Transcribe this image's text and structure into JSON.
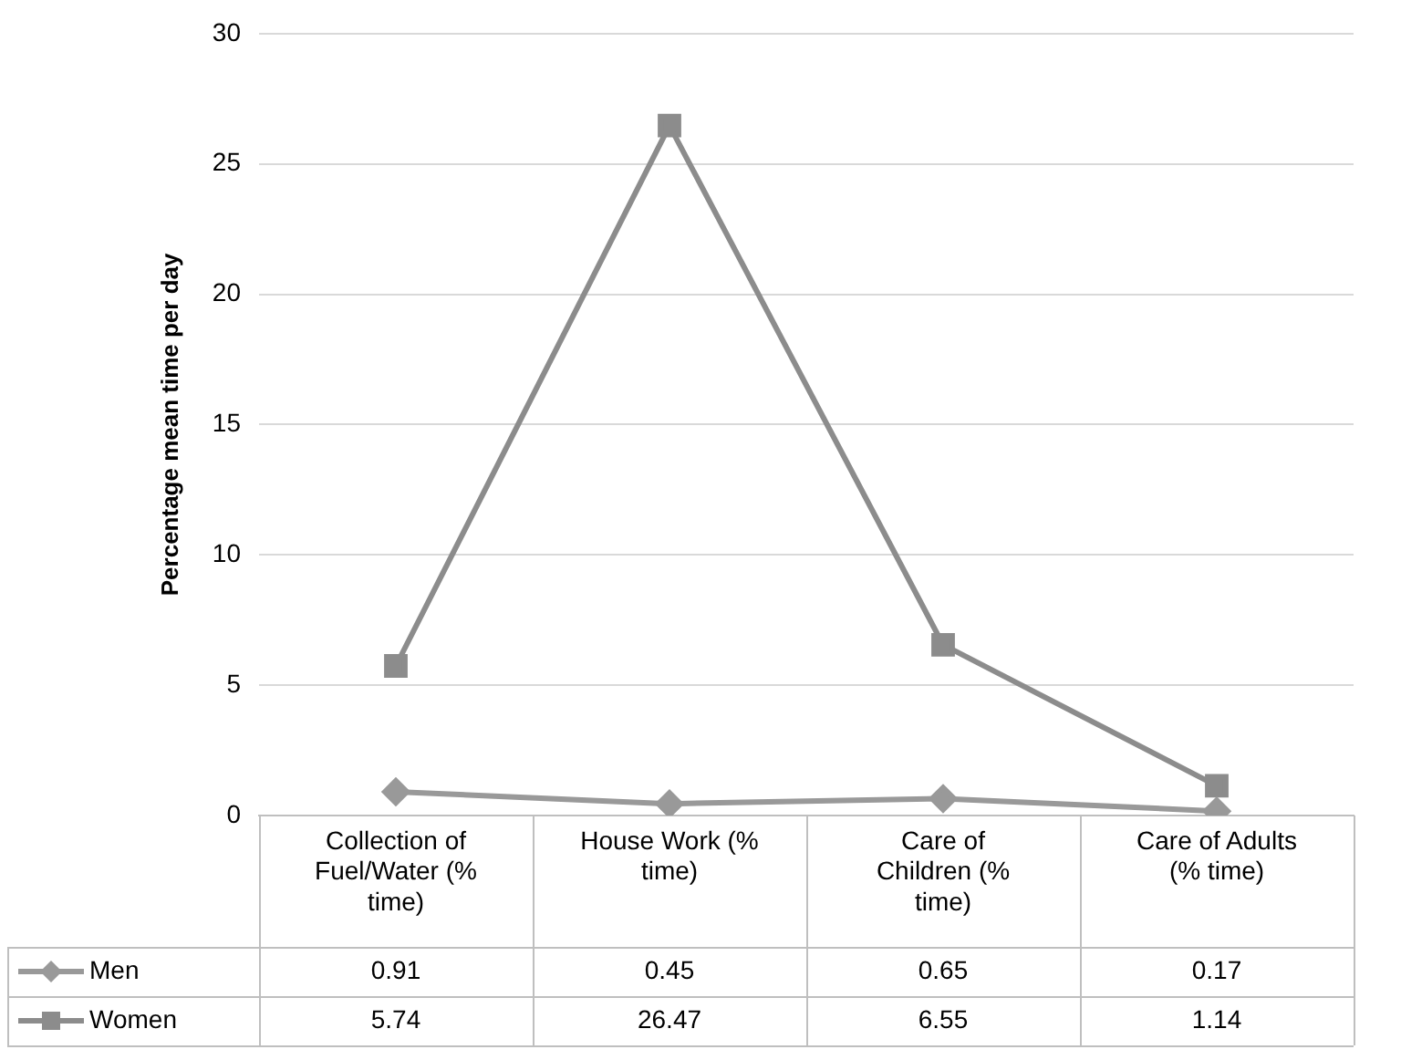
{
  "chart_data": {
    "type": "line",
    "ylabel": "Percentage mean time per day",
    "categories": [
      "Collection of Fuel/Water (% time)",
      "House Work (% time)",
      "Care of Children (% time)",
      "Care of Adults (% time)"
    ],
    "series": [
      {
        "name": "Men",
        "color": "#999999",
        "marker": "diamond",
        "values": [
          0.91,
          0.45,
          0.65,
          0.17
        ]
      },
      {
        "name": "Women",
        "color": "#8c8c8c",
        "marker": "square",
        "values": [
          5.74,
          26.47,
          6.55,
          1.14
        ]
      }
    ],
    "ylim": [
      0,
      30
    ],
    "yticks": [
      0,
      5,
      10,
      15,
      20,
      25,
      30
    ],
    "grid": "y",
    "legend": "bottom",
    "data_labels": true
  }
}
